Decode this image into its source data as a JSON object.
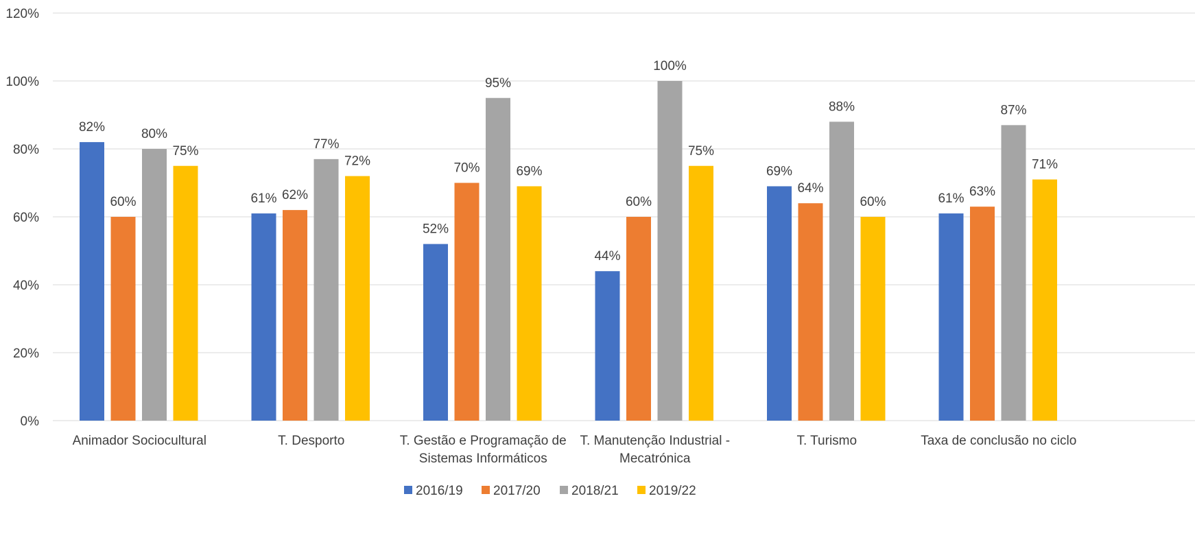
{
  "chart_data": {
    "type": "bar",
    "categories": [
      [
        "Animador Sociocultural"
      ],
      [
        "T. Desporto"
      ],
      [
        "T. Gestão e Programação de",
        "Sistemas Informáticos"
      ],
      [
        "T. Manutenção Industrial -",
        "Mecatrónica"
      ],
      [
        "T. Turismo"
      ],
      [
        "Taxa de conclusão no ciclo"
      ]
    ],
    "series": [
      {
        "name": "2016/19",
        "color": "#4472C4",
        "values": [
          82,
          61,
          52,
          44,
          69,
          61
        ],
        "labels": [
          "82%",
          "61%",
          "52%",
          "44%",
          "69%",
          "61%"
        ]
      },
      {
        "name": "2017/20",
        "color": "#ED7D31",
        "values": [
          60,
          62,
          70,
          60,
          64,
          63
        ],
        "labels": [
          "60%",
          "62%",
          "70%",
          "60%",
          "64%",
          "63%"
        ]
      },
      {
        "name": "2018/21",
        "color": "#A5A5A5",
        "values": [
          80,
          77,
          95,
          100,
          88,
          87
        ],
        "labels": [
          "80%",
          "77%",
          "95%",
          "100%",
          "88%",
          "87%"
        ]
      },
      {
        "name": "2019/22",
        "color": "#FFC000",
        "values": [
          75,
          72,
          69,
          75,
          60,
          71
        ],
        "labels": [
          "75%",
          "72%",
          "69%",
          "75%",
          "60%",
          "71%"
        ]
      }
    ],
    "ylim": [
      0,
      120
    ],
    "yticks": [
      0,
      20,
      40,
      60,
      80,
      100,
      120
    ],
    "ytick_labels": [
      "0%",
      "20%",
      "40%",
      "60%",
      "80%",
      "100%",
      "120%"
    ],
    "grid": true,
    "legend_position": "bottom",
    "gridline_color": "#D9D9D9"
  }
}
